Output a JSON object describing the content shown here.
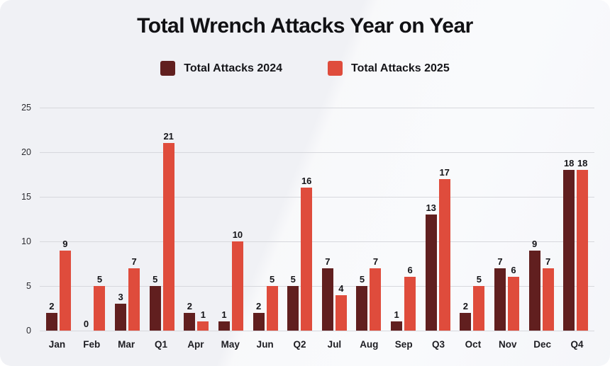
{
  "title": "Total Wrench Attacks Year on Year",
  "colors": {
    "card_background": "#f0f1f5",
    "gridline": "#d7d8dd",
    "series_2024": "#611f1f",
    "series_2025": "#df4c3c"
  },
  "chart_data": {
    "type": "bar",
    "title": "Total Wrench Attacks Year on Year",
    "categories": [
      "Jan",
      "Feb",
      "Mar",
      "Q1",
      "Apr",
      "May",
      "Jun",
      "Q2",
      "Jul",
      "Aug",
      "Sep",
      "Q3",
      "Oct",
      "Nov",
      "Dec",
      "Q4"
    ],
    "series": [
      {
        "name": "Total Attacks 2024",
        "color": "#611f1f",
        "values": [
          2,
          0,
          3,
          5,
          2,
          1,
          2,
          5,
          7,
          5,
          1,
          13,
          2,
          7,
          9,
          18
        ]
      },
      {
        "name": "Total Attacks 2025",
        "color": "#df4c3c",
        "values": [
          9,
          5,
          7,
          21,
          1,
          10,
          5,
          16,
          4,
          7,
          6,
          17,
          5,
          6,
          7,
          18
        ]
      }
    ],
    "xlabel": "",
    "ylabel": "",
    "ylim": [
      0,
      25
    ],
    "yticks": [
      0,
      5,
      10,
      15,
      20,
      25
    ],
    "grid": true,
    "legend_position": "top",
    "value_labels": true
  }
}
